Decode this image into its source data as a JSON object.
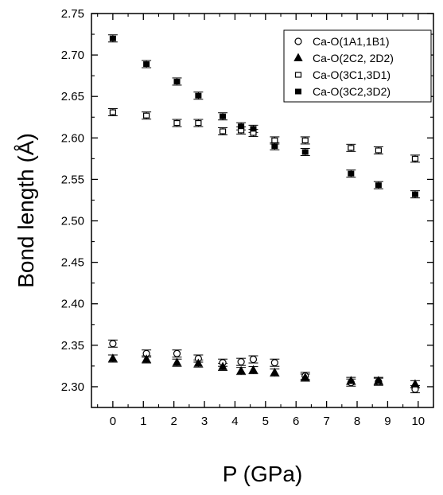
{
  "chart_data": {
    "type": "scatter",
    "xlabel": "P (GPa)",
    "ylabel": "Bond length (Å)",
    "xlim": [
      -0.7,
      10.5
    ],
    "ylim": [
      2.275,
      2.75
    ],
    "x_ticks": [
      0,
      1,
      2,
      3,
      4,
      5,
      6,
      7,
      8,
      9,
      10
    ],
    "y_ticks": [
      2.3,
      2.35,
      2.4,
      2.45,
      2.5,
      2.55,
      2.6,
      2.65,
      2.7,
      2.75
    ],
    "y_tick_labels": [
      "2.30",
      "2.35",
      "2.40",
      "2.45",
      "2.50",
      "2.55",
      "2.60",
      "2.65",
      "2.70",
      "2.75"
    ],
    "legend_position": "top-right",
    "error_bars": true,
    "series": [
      {
        "name": "Ca-O(1A1,1B1)",
        "marker": "circle-open",
        "x": [
          0.0,
          1.1,
          2.1,
          2.8,
          3.6,
          4.2,
          4.6,
          5.3,
          6.3,
          7.8,
          8.7,
          9.9
        ],
        "y": [
          2.352,
          2.34,
          2.34,
          2.334,
          2.329,
          2.33,
          2.333,
          2.329,
          2.313,
          2.305,
          2.306,
          2.297
        ]
      },
      {
        "name": "Ca-O(2C2, 2D2)",
        "marker": "triangle-filled",
        "x": [
          0.0,
          1.1,
          2.1,
          2.8,
          3.6,
          4.2,
          4.6,
          5.3,
          6.3,
          7.8,
          8.7,
          9.9
        ],
        "y": [
          2.334,
          2.333,
          2.329,
          2.328,
          2.324,
          2.319,
          2.32,
          2.317,
          2.311,
          2.307,
          2.307,
          2.303
        ]
      },
      {
        "name": "Ca-O(3C1,3D1)",
        "marker": "square-open",
        "x": [
          0.0,
          1.1,
          2.1,
          2.8,
          3.6,
          4.2,
          4.6,
          5.3,
          6.3,
          7.8,
          8.7,
          9.9
        ],
        "y": [
          2.631,
          2.627,
          2.618,
          2.618,
          2.608,
          2.609,
          2.606,
          2.597,
          2.597,
          2.588,
          2.585,
          2.575
        ]
      },
      {
        "name": "Ca-O(3C2,3D2)",
        "marker": "square-filled",
        "x": [
          0.0,
          1.1,
          2.1,
          2.8,
          3.6,
          4.2,
          4.6,
          5.3,
          6.3,
          7.8,
          8.7,
          9.9
        ],
        "y": [
          2.72,
          2.689,
          2.668,
          2.651,
          2.626,
          2.614,
          2.611,
          2.59,
          2.583,
          2.557,
          2.543,
          2.532
        ]
      }
    ]
  }
}
